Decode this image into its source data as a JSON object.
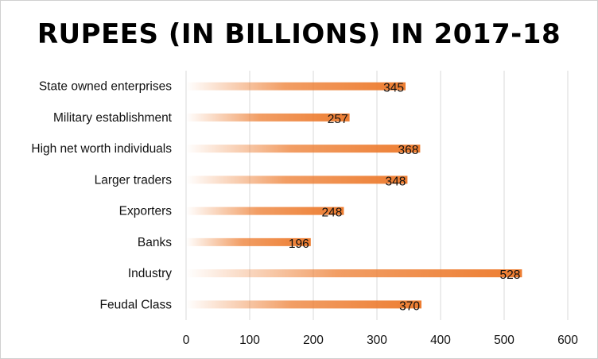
{
  "chart_data": {
    "type": "bar",
    "orientation": "horizontal",
    "title": "RUPEES (IN BILLIONS) IN 2017-18",
    "categories": [
      "State owned enterprises",
      "Military establishment",
      "High net worth individuals",
      "Larger traders",
      "Exporters",
      "Banks",
      "Industry",
      "Feudal Class"
    ],
    "values": [
      345,
      257,
      368,
      348,
      248,
      196,
      528,
      370
    ],
    "xlim": [
      0,
      600
    ],
    "x_ticks": [
      0,
      100,
      200,
      300,
      400,
      500,
      600
    ],
    "grid": "vertical",
    "legend": "none",
    "bar_color": "#ED7D31",
    "bar_fill": "gradient"
  }
}
